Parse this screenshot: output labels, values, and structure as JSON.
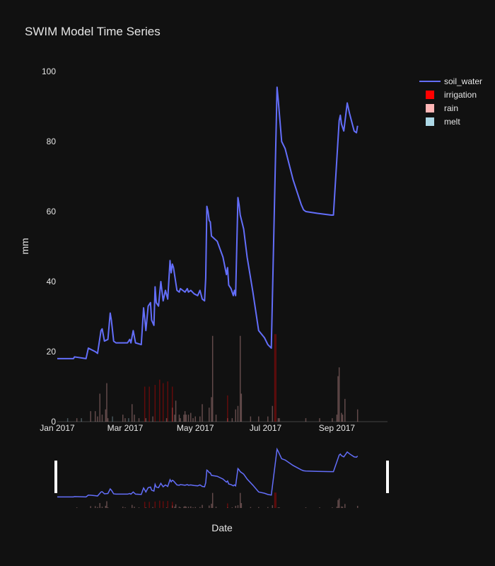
{
  "chart_data": {
    "type": "line",
    "title": "SWIM Model Time Series",
    "xlabel": "Date",
    "ylabel": "mm",
    "xlim": [
      "2017-01-01",
      "2017-10-15"
    ],
    "ylim": [
      0,
      100
    ],
    "yticks": [
      0,
      20,
      40,
      60,
      80,
      100
    ],
    "xticks": [
      {
        "date": "2017-01-01",
        "label": "Jan 2017"
      },
      {
        "date": "2017-03-01",
        "label": "Mar 2017"
      },
      {
        "date": "2017-05-01",
        "label": "May 2017"
      },
      {
        "date": "2017-07-01",
        "label": "Jul 2017"
      },
      {
        "date": "2017-09-01",
        "label": "Sep 2017"
      }
    ],
    "grid": false,
    "legend_position": "top-right",
    "range_slider": true,
    "colors": {
      "soil_water": "#636efa",
      "irrigation": "#ff0000",
      "rain": "#ffb6b6",
      "melt": "#add8e6",
      "background": "#111111"
    },
    "series": [
      {
        "name": "soil_water",
        "type": "line",
        "points": [
          [
            "2017-01-01",
            18
          ],
          [
            "2017-01-15",
            18
          ],
          [
            "2017-01-16",
            18.5
          ],
          [
            "2017-01-26",
            18
          ],
          [
            "2017-01-28",
            21
          ],
          [
            "2017-02-03",
            20
          ],
          [
            "2017-02-05",
            19.5
          ],
          [
            "2017-02-08",
            26
          ],
          [
            "2017-02-09",
            26.5
          ],
          [
            "2017-02-11",
            23
          ],
          [
            "2017-02-14",
            23.5
          ],
          [
            "2017-02-16",
            31
          ],
          [
            "2017-02-17",
            29
          ],
          [
            "2017-02-19",
            23
          ],
          [
            "2017-02-21",
            22.5
          ],
          [
            "2017-03-03",
            22.5
          ],
          [
            "2017-03-05",
            23.5
          ],
          [
            "2017-03-06",
            22.5
          ],
          [
            "2017-03-08",
            26
          ],
          [
            "2017-03-10",
            22.5
          ],
          [
            "2017-03-15",
            22
          ],
          [
            "2017-03-17",
            32.5
          ],
          [
            "2017-03-18",
            29.5
          ],
          [
            "2017-03-19",
            26
          ],
          [
            "2017-03-21",
            33
          ],
          [
            "2017-03-23",
            34
          ],
          [
            "2017-03-24",
            29
          ],
          [
            "2017-03-26",
            27.5
          ],
          [
            "2017-03-27",
            38.5
          ],
          [
            "2017-03-28",
            34
          ],
          [
            "2017-03-30",
            33
          ],
          [
            "2017-04-01",
            40
          ],
          [
            "2017-04-03",
            34.5
          ],
          [
            "2017-04-05",
            37.5
          ],
          [
            "2017-04-07",
            35
          ],
          [
            "2017-04-09",
            46
          ],
          [
            "2017-04-10",
            42.5
          ],
          [
            "2017-04-11",
            45
          ],
          [
            "2017-04-12",
            44
          ],
          [
            "2017-04-15",
            37.5
          ],
          [
            "2017-04-17",
            37
          ],
          [
            "2017-04-18",
            38
          ],
          [
            "2017-04-20",
            37.5
          ],
          [
            "2017-04-22",
            37
          ],
          [
            "2017-04-24",
            38
          ],
          [
            "2017-04-25",
            37
          ],
          [
            "2017-04-27",
            37.5
          ],
          [
            "2017-04-30",
            36.5
          ],
          [
            "2017-05-03",
            36
          ],
          [
            "2017-05-05",
            37.5
          ],
          [
            "2017-05-07",
            35
          ],
          [
            "2017-05-09",
            34.5
          ],
          [
            "2017-05-10",
            41
          ],
          [
            "2017-05-11",
            61.5
          ],
          [
            "2017-05-12",
            60
          ],
          [
            "2017-05-13",
            57.5
          ],
          [
            "2017-05-14",
            57
          ],
          [
            "2017-05-15",
            53
          ],
          [
            "2017-05-20",
            51.5
          ],
          [
            "2017-05-25",
            47
          ],
          [
            "2017-05-28",
            42
          ],
          [
            "2017-05-29",
            44
          ],
          [
            "2017-05-30",
            39
          ],
          [
            "2017-06-01",
            38
          ],
          [
            "2017-06-03",
            36
          ],
          [
            "2017-06-04",
            37.5
          ],
          [
            "2017-06-05",
            36
          ],
          [
            "2017-06-06",
            50
          ],
          [
            "2017-06-07",
            64
          ],
          [
            "2017-06-08",
            62
          ],
          [
            "2017-06-09",
            59
          ],
          [
            "2017-06-12",
            55
          ],
          [
            "2017-06-15",
            47
          ],
          [
            "2017-06-20",
            37
          ],
          [
            "2017-06-25",
            26
          ],
          [
            "2017-06-30",
            24
          ],
          [
            "2017-07-03",
            22
          ],
          [
            "2017-07-06",
            21
          ],
          [
            "2017-07-11",
            95.5
          ],
          [
            "2017-07-12",
            92
          ],
          [
            "2017-07-15",
            80
          ],
          [
            "2017-07-18",
            78
          ],
          [
            "2017-07-25",
            69
          ],
          [
            "2017-08-01",
            62
          ],
          [
            "2017-08-03",
            60.5
          ],
          [
            "2017-08-05",
            60
          ],
          [
            "2017-08-15",
            59.5
          ],
          [
            "2017-08-27",
            59
          ],
          [
            "2017-08-29",
            59
          ],
          [
            "2017-09-03",
            86
          ],
          [
            "2017-09-04",
            87.5
          ],
          [
            "2017-09-05",
            85
          ],
          [
            "2017-09-07",
            83
          ],
          [
            "2017-09-10",
            91
          ],
          [
            "2017-09-12",
            88
          ],
          [
            "2017-09-16",
            83
          ],
          [
            "2017-09-18",
            82.5
          ],
          [
            "2017-09-19",
            84.5
          ]
        ]
      },
      {
        "name": "irrigation",
        "type": "bar",
        "points": [
          [
            "2017-03-18",
            10
          ],
          [
            "2017-03-22",
            10
          ],
          [
            "2017-03-27",
            10.5
          ],
          [
            "2017-03-31",
            12
          ],
          [
            "2017-04-03",
            11
          ],
          [
            "2017-04-07",
            11.5
          ],
          [
            "2017-04-11",
            10
          ],
          [
            "2017-05-29",
            7.5
          ],
          [
            "2017-07-09",
            25
          ],
          [
            "2017-07-10",
            25
          ]
        ]
      },
      {
        "name": "rain",
        "type": "bar",
        "points": [
          [
            "2017-01-18",
            1
          ],
          [
            "2017-01-30",
            3
          ],
          [
            "2017-02-03",
            3
          ],
          [
            "2017-02-05",
            1.5
          ],
          [
            "2017-02-07",
            8
          ],
          [
            "2017-02-09",
            2
          ],
          [
            "2017-02-12",
            3.5
          ],
          [
            "2017-02-13",
            11
          ],
          [
            "2017-02-14",
            1
          ],
          [
            "2017-02-27",
            2
          ],
          [
            "2017-03-01",
            1
          ],
          [
            "2017-03-07",
            5
          ],
          [
            "2017-03-09",
            2
          ],
          [
            "2017-03-13",
            1
          ],
          [
            "2017-03-19",
            1
          ],
          [
            "2017-03-25",
            1.5
          ],
          [
            "2017-04-06",
            1
          ],
          [
            "2017-04-11",
            4
          ],
          [
            "2017-04-13",
            2
          ],
          [
            "2017-04-14",
            6
          ],
          [
            "2017-04-17",
            2
          ],
          [
            "2017-04-18",
            1
          ],
          [
            "2017-04-21",
            2
          ],
          [
            "2017-04-22",
            3
          ],
          [
            "2017-04-23",
            2
          ],
          [
            "2017-04-25",
            2
          ],
          [
            "2017-04-27",
            2.5
          ],
          [
            "2017-04-29",
            1
          ],
          [
            "2017-05-01",
            1.5
          ],
          [
            "2017-05-05",
            1.5
          ],
          [
            "2017-05-07",
            5
          ],
          [
            "2017-05-13",
            4
          ],
          [
            "2017-05-15",
            7
          ],
          [
            "2017-05-16",
            24.5
          ],
          [
            "2017-05-19",
            2
          ],
          [
            "2017-05-29",
            1
          ],
          [
            "2017-06-02",
            1
          ],
          [
            "2017-06-05",
            3.5
          ],
          [
            "2017-06-07",
            4.5
          ],
          [
            "2017-06-09",
            24.5
          ],
          [
            "2017-06-10",
            8
          ],
          [
            "2017-06-18",
            1.5
          ],
          [
            "2017-06-25",
            1.5
          ],
          [
            "2017-07-03",
            1.5
          ],
          [
            "2017-07-07",
            4.5
          ],
          [
            "2017-07-12",
            1
          ],
          [
            "2017-07-13",
            1
          ],
          [
            "2017-08-05",
            1
          ],
          [
            "2017-08-17",
            1
          ],
          [
            "2017-08-28",
            1
          ],
          [
            "2017-09-01",
            2
          ],
          [
            "2017-09-02",
            13
          ],
          [
            "2017-09-03",
            15.5
          ],
          [
            "2017-09-05",
            2.5
          ],
          [
            "2017-09-06",
            2
          ],
          [
            "2017-09-08",
            6.5
          ],
          [
            "2017-09-19",
            3.5
          ]
        ]
      },
      {
        "name": "melt",
        "type": "bar",
        "points": [
          [
            "2017-01-10",
            1
          ],
          [
            "2017-01-22",
            1
          ],
          [
            "2017-02-18",
            1.5
          ],
          [
            "2017-03-04",
            1
          ]
        ]
      }
    ]
  }
}
